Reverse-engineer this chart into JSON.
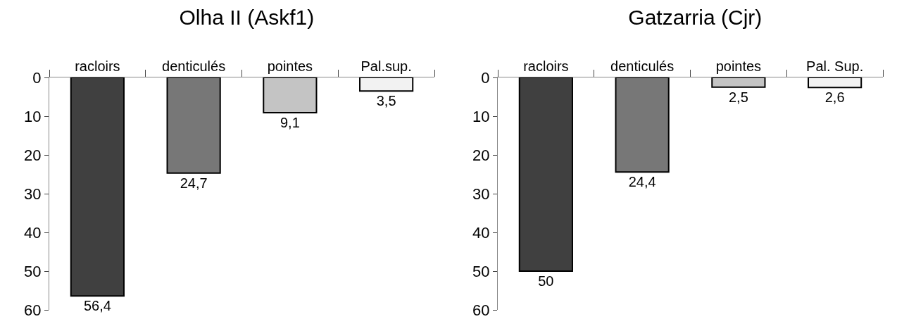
{
  "chart_data": [
    {
      "type": "bar",
      "title": "Olha II (Askf1)",
      "categories": [
        "racloirs",
        "denticulés",
        "pointes",
        "Pal.sup."
      ],
      "values": [
        56.4,
        24.7,
        9.1,
        3.5
      ],
      "colors": [
        "#404040",
        "#777777",
        "#c4c4c4",
        "#f2f2f2"
      ],
      "value_labels": [
        "56,4",
        "24,7",
        "9,1",
        "3,5"
      ],
      "ylim": [
        60,
        0
      ],
      "yticks": [
        0,
        10,
        20,
        30,
        40,
        50,
        60
      ],
      "grid": false
    },
    {
      "type": "bar",
      "title": "Gatzarria (Cjr)",
      "categories": [
        "racloirs",
        "denticulés",
        "pointes",
        "Pal. Sup."
      ],
      "values": [
        50,
        24.4,
        2.5,
        2.6
      ],
      "colors": [
        "#404040",
        "#777777",
        "#c4c4c4",
        "#f2f2f2"
      ],
      "value_labels": [
        "50",
        "24,4",
        "2,5",
        "2,6"
      ],
      "ylim": [
        60,
        0
      ],
      "yticks": [
        0,
        10,
        20,
        30,
        40,
        50,
        60
      ],
      "grid": false
    }
  ]
}
